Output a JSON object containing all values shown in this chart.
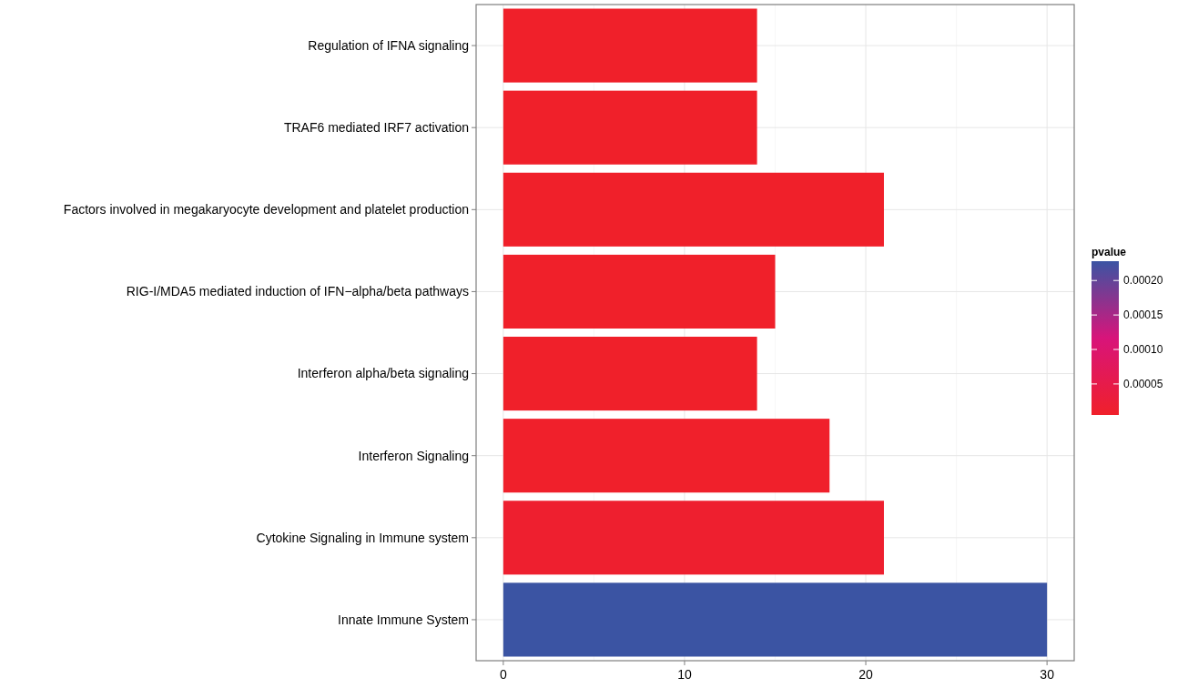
{
  "chart_data": {
    "type": "bar",
    "orientation": "horizontal",
    "categories": [
      "Regulation of IFNA signaling",
      "TRAF6 mediated IRF7 activation",
      "Factors involved in megakaryocyte development and platelet production",
      "RIG-I/MDA5 mediated induction of IFN−alpha/beta pathways",
      "Interferon alpha/beta signaling",
      "Interferon Signaling",
      "Cytokine Signaling in Immune system",
      "Innate Immune System"
    ],
    "values": [
      14,
      14,
      21,
      15,
      14,
      18,
      21,
      30
    ],
    "cvalues": [
      5e-06,
      5e-06,
      5e-06,
      5e-06,
      5e-06,
      6e-06,
      1.2e-05,
      0.000228
    ],
    "clabel": "pvalue",
    "clim": [
      5e-06,
      0.000228
    ],
    "cticks": [
      {
        "value": 5e-05,
        "label": "0.00005"
      },
      {
        "value": 0.0001,
        "label": "0.00010"
      },
      {
        "value": 0.00015,
        "label": "0.00015"
      },
      {
        "value": 0.0002,
        "label": "0.00020"
      }
    ],
    "xlim": [
      -1.5,
      31.5
    ],
    "xticks": [
      0,
      10,
      20,
      30
    ],
    "grid": true
  }
}
